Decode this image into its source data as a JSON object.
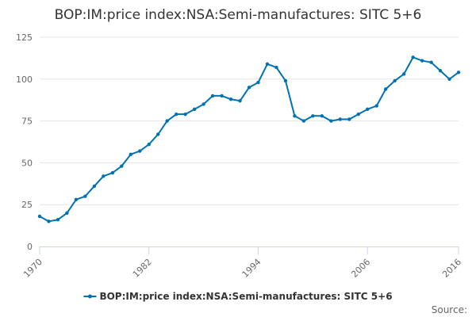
{
  "chart_data": {
    "type": "line",
    "title": "BOP:IM:price index:NSA:Semi-manufactures: SITC 5+6",
    "xlabel": "",
    "ylabel": "",
    "x_ticks": [
      "1970",
      "1982",
      "1994",
      "2006",
      "2016"
    ],
    "y_ticks": [
      0,
      25,
      50,
      75,
      100,
      125
    ],
    "xlim": [
      1970,
      2016
    ],
    "ylim": [
      0,
      125
    ],
    "grid": true,
    "legend_position": "bottom",
    "series": [
      {
        "name": "BOP:IM:price index:NSA:Semi-manufactures: SITC 5+6",
        "color": "#0072b3",
        "x": [
          1970,
          1971,
          1972,
          1973,
          1974,
          1975,
          1976,
          1977,
          1978,
          1979,
          1980,
          1981,
          1982,
          1983,
          1984,
          1985,
          1986,
          1987,
          1988,
          1989,
          1990,
          1991,
          1992,
          1993,
          1994,
          1995,
          1996,
          1997,
          1998,
          1999,
          2000,
          2001,
          2002,
          2003,
          2004,
          2005,
          2006,
          2007,
          2008,
          2009,
          2010,
          2011,
          2012,
          2013,
          2014,
          2015,
          2016
        ],
        "values": [
          18,
          15,
          16,
          20,
          28,
          30,
          36,
          42,
          44,
          48,
          55,
          57,
          61,
          67,
          75,
          79,
          79,
          82,
          85,
          90,
          90,
          88,
          87,
          95,
          98,
          109,
          107,
          99,
          78,
          75,
          78,
          78,
          75,
          76,
          76,
          79,
          82,
          84,
          94,
          99,
          103,
          113,
          111,
          110,
          105,
          100,
          104
        ]
      }
    ]
  },
  "source_label": "Source:"
}
